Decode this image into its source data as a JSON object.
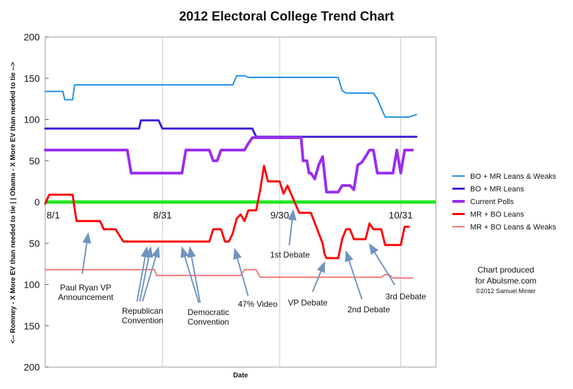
{
  "chart_data": {
    "type": "line",
    "title": "2012 Electoral College Trend Chart",
    "xlabel": "Date",
    "ylabel": "<-- Romney - X More EV than needed to tie | |  Obama - X More EV than needed to tie -->",
    "x_tick_labels": [
      {
        "day": 0,
        "label": "8/1"
      },
      {
        "day": 30,
        "label": "8/31"
      },
      {
        "day": 60,
        "label": "9/30"
      },
      {
        "day": 91,
        "label": "10/31"
      }
    ],
    "y_ticks": [
      {
        "value": 200,
        "label": "200"
      },
      {
        "value": 150,
        "label": "150"
      },
      {
        "value": 100,
        "label": "100"
      },
      {
        "value": 50,
        "label": "50"
      },
      {
        "value": 0,
        "label": "0"
      },
      {
        "value": -50,
        "label": "50"
      },
      {
        "value": -100,
        "label": "100"
      },
      {
        "value": -150,
        "label": "150"
      },
      {
        "value": -200,
        "label": "200"
      }
    ],
    "xlim": [
      0,
      100
    ],
    "ylim": [
      -200,
      200
    ],
    "grid": "vertical",
    "legend_position": "right",
    "zero_line_color": "#22e822",
    "series": [
      {
        "name": "BO + MR Leans & Weaks",
        "color": "#1e8fe0",
        "width": 2,
        "points": [
          [
            0,
            134
          ],
          [
            4.5,
            134
          ],
          [
            5,
            124
          ],
          [
            7,
            124
          ],
          [
            7.5,
            142
          ],
          [
            48,
            142
          ],
          [
            49,
            153
          ],
          [
            51,
            153
          ],
          [
            52,
            151
          ],
          [
            75,
            151
          ],
          [
            76,
            135
          ],
          [
            77,
            132
          ],
          [
            84,
            132
          ],
          [
            85,
            125
          ],
          [
            87,
            103
          ],
          [
            93,
            103
          ],
          [
            95,
            106
          ]
        ]
      },
      {
        "name": "BO + MR Leans",
        "color": "#3a1fd6",
        "width": 3,
        "points": [
          [
            0,
            89
          ],
          [
            24,
            89
          ],
          [
            24.5,
            99
          ],
          [
            29,
            99
          ],
          [
            30,
            89
          ],
          [
            53,
            89
          ],
          [
            54,
            79
          ],
          [
            95,
            79
          ]
        ]
      },
      {
        "name": "Current Polls",
        "color": "#9a2cf0",
        "width": 4,
        "points": [
          [
            0,
            63
          ],
          [
            21,
            63
          ],
          [
            22,
            35
          ],
          [
            35,
            35
          ],
          [
            36,
            63
          ],
          [
            42,
            63
          ],
          [
            43,
            50
          ],
          [
            44,
            50
          ],
          [
            45,
            63
          ],
          [
            51,
            63
          ],
          [
            52,
            71
          ],
          [
            53,
            78
          ],
          [
            65,
            78
          ],
          [
            65.5,
            78
          ],
          [
            66,
            50
          ],
          [
            67,
            50
          ],
          [
            67.5,
            35
          ],
          [
            68,
            35
          ],
          [
            69,
            28
          ],
          [
            70,
            45
          ],
          [
            71,
            55
          ],
          [
            72,
            12
          ],
          [
            75,
            12
          ],
          [
            76,
            20
          ],
          [
            78,
            20
          ],
          [
            79,
            15
          ],
          [
            80,
            45
          ],
          [
            81,
            48
          ],
          [
            82,
            55
          ],
          [
            83,
            63
          ],
          [
            84,
            63
          ],
          [
            85,
            35
          ],
          [
            89,
            35
          ],
          [
            90,
            63
          ],
          [
            91,
            35
          ],
          [
            92,
            63
          ],
          [
            94,
            63
          ]
        ]
      },
      {
        "name": "MR + BO Leans",
        "color": "#ff0000",
        "width": 3,
        "points": [
          [
            0,
            -2
          ],
          [
            1,
            9
          ],
          [
            7,
            9
          ],
          [
            8,
            -23
          ],
          [
            14,
            -23
          ],
          [
            15,
            -33
          ],
          [
            18,
            -33
          ],
          [
            20,
            -48
          ],
          [
            42,
            -48
          ],
          [
            43,
            -33
          ],
          [
            45,
            -33
          ],
          [
            46,
            -48
          ],
          [
            47,
            -48
          ],
          [
            48,
            -38
          ],
          [
            49,
            -20
          ],
          [
            50,
            -15
          ],
          [
            51,
            -23
          ],
          [
            52,
            -10
          ],
          [
            54,
            -10
          ],
          [
            55,
            14
          ],
          [
            56,
            44
          ],
          [
            57,
            25
          ],
          [
            60,
            25
          ],
          [
            61,
            10
          ],
          [
            62,
            20
          ],
          [
            64,
            -2
          ],
          [
            65,
            -13
          ],
          [
            68,
            -13
          ],
          [
            71,
            -50
          ],
          [
            71.5,
            -63
          ],
          [
            72,
            -68
          ],
          [
            75,
            -68
          ],
          [
            76,
            -45
          ],
          [
            77,
            -33
          ],
          [
            78,
            -33
          ],
          [
            79,
            -45
          ],
          [
            82,
            -45
          ],
          [
            83,
            -26
          ],
          [
            84,
            -33
          ],
          [
            86,
            -33
          ],
          [
            87,
            -52
          ],
          [
            91,
            -52
          ],
          [
            92,
            -30
          ],
          [
            93,
            -30
          ]
        ]
      },
      {
        "name": "MR + BO Leans & Weaks",
        "color": "#f87575",
        "width": 2,
        "points": [
          [
            0,
            -82
          ],
          [
            28,
            -82
          ],
          [
            28.5,
            -89
          ],
          [
            50,
            -89
          ],
          [
            51,
            -82
          ],
          [
            54,
            -82
          ],
          [
            55,
            -91
          ],
          [
            86,
            -91
          ],
          [
            87,
            -88
          ],
          [
            88,
            -88
          ],
          [
            89,
            -92
          ],
          [
            94,
            -92
          ]
        ]
      }
    ],
    "annotations": [
      {
        "lines": [
          "Paul Ryan VP",
          "Announcement"
        ],
        "arrow_to_day": 11,
        "arrow_to_value": -33
      },
      {
        "lines": [
          "Republican",
          "Convention"
        ],
        "arrow_to_days": [
          26,
          27,
          29
        ],
        "arrow_to_value": -50
      },
      {
        "lines": [
          "Democratic",
          "Convention"
        ],
        "arrow_to_days": [
          35,
          37
        ],
        "arrow_to_value": -50
      },
      {
        "lines": [
          "47% Video"
        ],
        "arrow_to_day": 48.5,
        "arrow_to_value": -52
      },
      {
        "lines": [
          "1st Debate"
        ],
        "arrow_to_day": 63.5,
        "arrow_to_value": -5
      },
      {
        "lines": [
          "VP Debate"
        ],
        "arrow_to_day": 71.5,
        "arrow_to_value": -68
      },
      {
        "lines": [
          "2nd Debate"
        ],
        "arrow_to_day": 77,
        "arrow_to_value": -55
      },
      {
        "lines": [
          "3rd Debate"
        ],
        "arrow_to_day": 83,
        "arrow_to_value": -46
      }
    ]
  },
  "credit": {
    "line1": "Chart produced",
    "line2": "for Abulsme.com",
    "line3": "©2012 Samuel Minter"
  }
}
